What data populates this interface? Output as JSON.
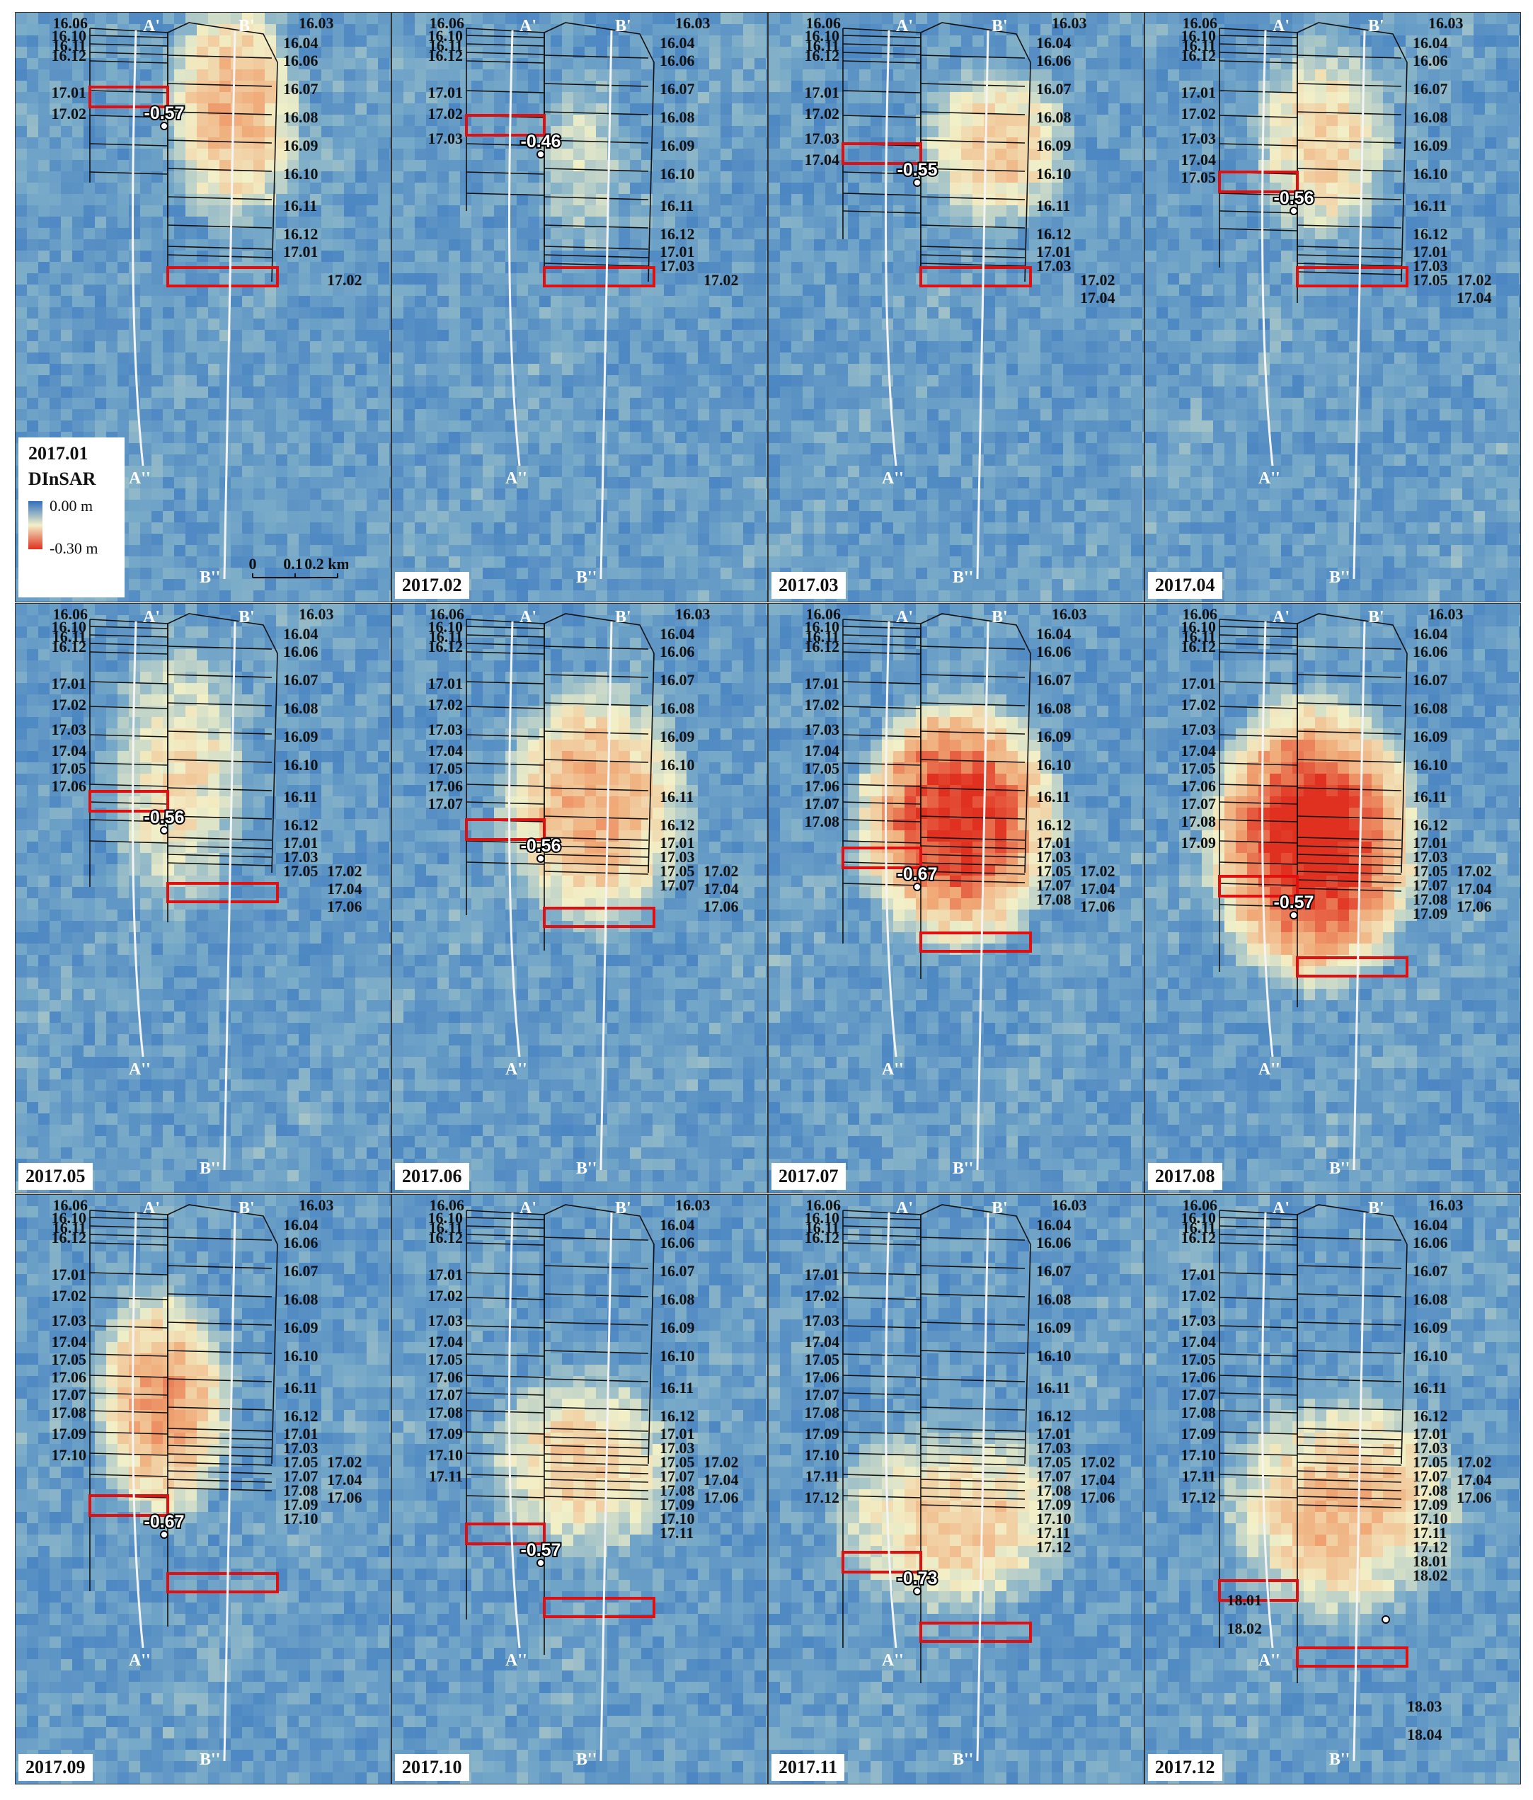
{
  "legend": {
    "title": "2017.01",
    "subtitle": "DInSAR",
    "max_label": "0.00 m",
    "min_label": "-0.30 m",
    "colors": {
      "high": "#2f6fbf",
      "mid": "#f2f0c8",
      "low": "#e03020"
    }
  },
  "scale_bar": {
    "labels": [
      "0",
      "0.1",
      "0.2 km"
    ]
  },
  "profiles": {
    "a_top": "A'",
    "a_bottom": "A''",
    "b_top": "B'",
    "b_bottom": "B''"
  },
  "top_labels": {
    "left": "16.06",
    "right": "16.03"
  },
  "panels": [
    {
      "month": "2017.01",
      "value": "-0.57",
      "show_month_box": false,
      "left_labels": [
        "16.10",
        "16.11",
        "16.12",
        "17.01",
        "17.02"
      ],
      "right_labels": [
        "16.04",
        "16.06",
        "16.07",
        "16.08",
        "16.09",
        "16.10",
        "16.11",
        "16.12",
        "17.01"
      ],
      "right_extra": [
        "17.02"
      ],
      "bottom_labels": [],
      "left_extra": []
    },
    {
      "month": "2017.02",
      "value": "-0.46",
      "show_month_box": true,
      "left_labels": [
        "16.10",
        "16.11",
        "16.12",
        "17.01",
        "17.02",
        "17.03"
      ],
      "right_labels": [
        "16.04",
        "16.06",
        "16.07",
        "16.08",
        "16.09",
        "16.10",
        "16.11",
        "16.12",
        "17.01",
        "17.03"
      ],
      "right_extra": [
        "17.02"
      ],
      "bottom_labels": [],
      "left_extra": []
    },
    {
      "month": "2017.03",
      "value": "-0.55",
      "show_month_box": true,
      "left_labels": [
        "16.10",
        "16.11",
        "16.12",
        "17.01",
        "17.02",
        "17.03",
        "17.04"
      ],
      "right_labels": [
        "16.04",
        "16.06",
        "16.07",
        "16.08",
        "16.09",
        "16.10",
        "16.11",
        "16.12",
        "17.01",
        "17.03"
      ],
      "right_extra": [
        "17.02",
        "17.04"
      ],
      "bottom_labels": [],
      "left_extra": []
    },
    {
      "month": "2017.04",
      "value": "-0.56",
      "show_month_box": true,
      "left_labels": [
        "16.10",
        "16.11",
        "16.12",
        "17.01",
        "17.02",
        "17.03",
        "17.04",
        "17.05"
      ],
      "right_labels": [
        "16.04",
        "16.06",
        "16.07",
        "16.08",
        "16.09",
        "16.10",
        "16.11",
        "16.12",
        "17.01",
        "17.03",
        "17.05"
      ],
      "right_extra": [
        "17.02",
        "17.04"
      ],
      "bottom_labels": [],
      "left_extra": []
    },
    {
      "month": "2017.05",
      "value": "-0.56",
      "show_month_box": true,
      "left_labels": [
        "16.10",
        "16.11",
        "16.12",
        "17.01",
        "17.02",
        "17.03",
        "17.04",
        "17.05",
        "17.06"
      ],
      "right_labels": [
        "16.04",
        "16.06",
        "16.07",
        "16.08",
        "16.09",
        "16.10",
        "16.11",
        "16.12",
        "17.01",
        "17.03",
        "17.05"
      ],
      "right_extra": [
        "17.02",
        "17.04",
        "17.06"
      ],
      "bottom_labels": [],
      "left_extra": []
    },
    {
      "month": "2017.06",
      "value": "-0.56",
      "show_month_box": true,
      "left_labels": [
        "16.10",
        "16.11",
        "16.12",
        "17.01",
        "17.02",
        "17.03",
        "17.04",
        "17.05",
        "17.06",
        "17.07"
      ],
      "right_labels": [
        "16.04",
        "16.06",
        "16.07",
        "16.08",
        "16.09",
        "16.10",
        "16.11",
        "16.12",
        "17.01",
        "17.03",
        "17.05",
        "17.07"
      ],
      "right_extra": [
        "17.02",
        "17.04",
        "17.06"
      ],
      "bottom_labels": [],
      "left_extra": []
    },
    {
      "month": "2017.07",
      "value": "-0.67",
      "show_month_box": true,
      "left_labels": [
        "16.10",
        "16.11",
        "16.12",
        "17.01",
        "17.02",
        "17.03",
        "17.04",
        "17.05",
        "17.06",
        "17.07",
        "17.08"
      ],
      "right_labels": [
        "16.04",
        "16.06",
        "16.07",
        "16.08",
        "16.09",
        "16.10",
        "16.11",
        "16.12",
        "17.01",
        "17.03",
        "17.05",
        "17.07",
        "17.08"
      ],
      "right_extra": [
        "17.02",
        "17.04",
        "17.06"
      ],
      "bottom_labels": [],
      "left_extra": []
    },
    {
      "month": "2017.08",
      "value": "-0.57",
      "show_month_box": true,
      "left_labels": [
        "16.10",
        "16.11",
        "16.12",
        "17.01",
        "17.02",
        "17.03",
        "17.04",
        "17.05",
        "17.06",
        "17.07",
        "17.08",
        "17.09"
      ],
      "right_labels": [
        "16.04",
        "16.06",
        "16.07",
        "16.08",
        "16.09",
        "16.10",
        "16.11",
        "16.12",
        "17.01",
        "17.03",
        "17.05",
        "17.07",
        "17.08",
        "17.09"
      ],
      "right_extra": [
        "17.02",
        "17.04",
        "17.06"
      ],
      "bottom_labels": [],
      "left_extra": []
    },
    {
      "month": "2017.09",
      "value": "-0.67",
      "show_month_box": true,
      "left_labels": [
        "16.10",
        "16.11",
        "16.12",
        "17.01",
        "17.02",
        "17.03",
        "17.04",
        "17.05",
        "17.06",
        "17.07",
        "17.08",
        "17.09",
        "17.10"
      ],
      "right_labels": [
        "16.04",
        "16.06",
        "16.07",
        "16.08",
        "16.09",
        "16.10",
        "16.11",
        "16.12",
        "17.01",
        "17.03",
        "17.05",
        "17.07",
        "17.08",
        "17.09",
        "17.10"
      ],
      "right_extra": [
        "17.02",
        "17.04",
        "17.06"
      ],
      "bottom_labels": [],
      "left_extra": []
    },
    {
      "month": "2017.10",
      "value": "-0.57",
      "show_month_box": true,
      "left_labels": [
        "16.10",
        "16.11",
        "16.12",
        "17.01",
        "17.02",
        "17.03",
        "17.04",
        "17.05",
        "17.06",
        "17.07",
        "17.08",
        "17.09",
        "17.10",
        "17.11"
      ],
      "right_labels": [
        "16.04",
        "16.06",
        "16.07",
        "16.08",
        "16.09",
        "16.10",
        "16.11",
        "16.12",
        "17.01",
        "17.03",
        "17.05",
        "17.07",
        "17.08",
        "17.09",
        "17.10",
        "17.11"
      ],
      "right_extra": [
        "17.02",
        "17.04",
        "17.06"
      ],
      "bottom_labels": [],
      "left_extra": []
    },
    {
      "month": "2017.11",
      "value": "-0.73",
      "show_month_box": true,
      "left_labels": [
        "16.10",
        "16.11",
        "16.12",
        "17.01",
        "17.02",
        "17.03",
        "17.04",
        "17.05",
        "17.06",
        "17.07",
        "17.08",
        "17.09",
        "17.10",
        "17.11",
        "17.12"
      ],
      "right_labels": [
        "16.04",
        "16.06",
        "16.07",
        "16.08",
        "16.09",
        "16.10",
        "16.11",
        "16.12",
        "17.01",
        "17.03",
        "17.05",
        "17.07",
        "17.08",
        "17.09",
        "17.10",
        "17.11",
        "17.12"
      ],
      "right_extra": [
        "17.02",
        "17.04",
        "17.06"
      ],
      "bottom_labels": [],
      "left_extra": []
    },
    {
      "month": "2017.12",
      "value": "",
      "show_month_box": true,
      "left_labels": [
        "16.10",
        "16.11",
        "16.12",
        "17.01",
        "17.02",
        "17.03",
        "17.04",
        "17.05",
        "17.06",
        "17.07",
        "17.08",
        "17.09",
        "17.10",
        "17.11",
        "17.12"
      ],
      "right_labels": [
        "16.04",
        "16.06",
        "16.07",
        "16.08",
        "16.09",
        "16.10",
        "16.11",
        "16.12",
        "17.01",
        "17.03",
        "17.05",
        "17.07",
        "17.08",
        "17.09",
        "17.10",
        "17.11",
        "17.12",
        "18.01",
        "18.02"
      ],
      "right_extra": [
        "17.02",
        "17.04",
        "17.06"
      ],
      "bottom_labels": [
        "18.03",
        "18.04"
      ],
      "left_extra": [
        "18.01",
        "18.02"
      ]
    }
  ]
}
